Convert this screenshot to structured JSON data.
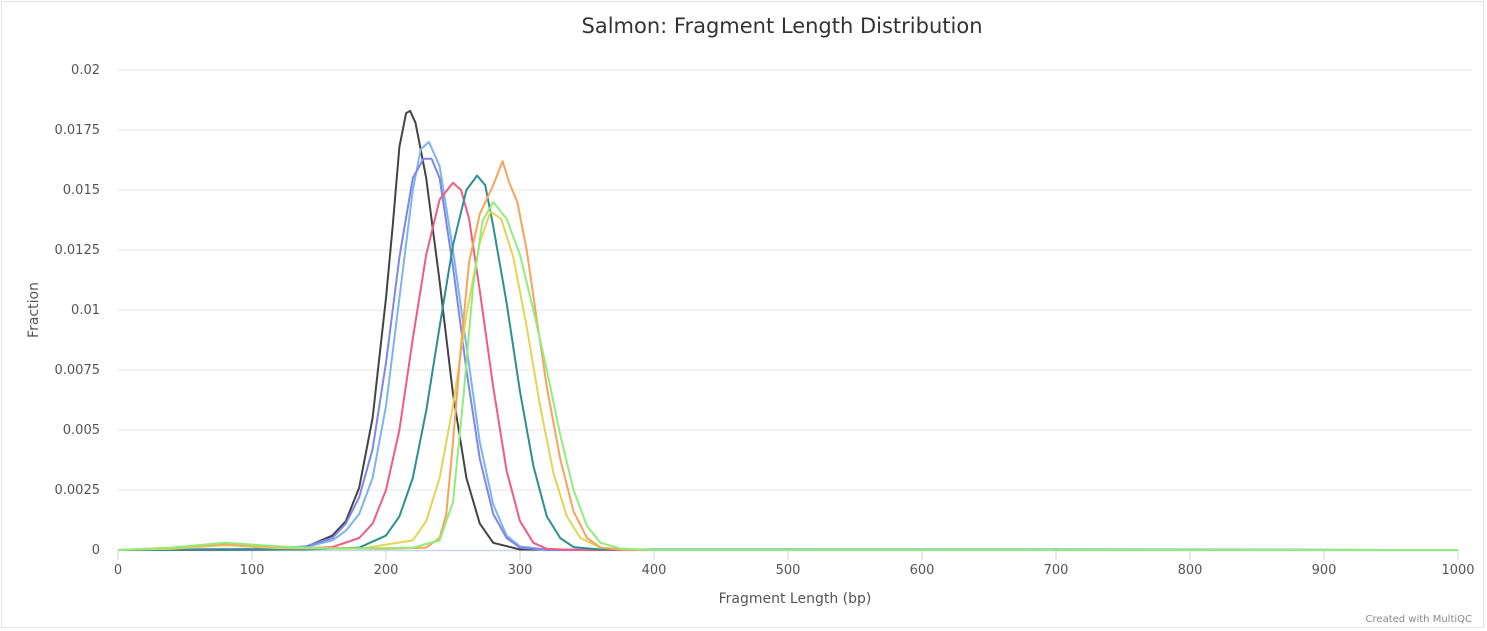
{
  "chart_data": {
    "type": "line",
    "title": "Salmon: Fragment Length Distribution",
    "xlabel": "Fragment Length (bp)",
    "ylabel": "Fraction",
    "xlim": [
      0,
      1000
    ],
    "ylim": [
      0,
      0.02
    ],
    "x_ticks": [
      "0",
      "100",
      "200",
      "300",
      "400",
      "500",
      "600",
      "700",
      "800",
      "900",
      "1000"
    ],
    "y_ticks": [
      "0",
      "0.0025",
      "0.005",
      "0.0075",
      "0.01",
      "0.0125",
      "0.015",
      "0.0175",
      "0.02"
    ],
    "grid": true,
    "legend": "none",
    "series": [
      {
        "color": "#434348",
        "points": [
          [
            0,
            0
          ],
          [
            40,
            0
          ],
          [
            120,
            2e-05
          ],
          [
            140,
            0.00012
          ],
          [
            160,
            0.0006
          ],
          [
            170,
            0.0012
          ],
          [
            180,
            0.0026
          ],
          [
            190,
            0.0055
          ],
          [
            200,
            0.0105
          ],
          [
            205,
            0.0135
          ],
          [
            210,
            0.0168
          ],
          [
            215,
            0.0182
          ],
          [
            218,
            0.0183
          ],
          [
            222,
            0.0178
          ],
          [
            230,
            0.0155
          ],
          [
            240,
            0.0112
          ],
          [
            250,
            0.0065
          ],
          [
            260,
            0.003
          ],
          [
            270,
            0.0011
          ],
          [
            280,
            0.0003
          ],
          [
            300,
            2e-05
          ],
          [
            1000,
            0
          ]
        ]
      },
      {
        "color": "#7cb5ec",
        "points": [
          [
            0,
            0
          ],
          [
            100,
            5e-05
          ],
          [
            140,
            0.00012
          ],
          [
            160,
            0.0004
          ],
          [
            170,
            0.0008
          ],
          [
            180,
            0.0015
          ],
          [
            190,
            0.003
          ],
          [
            200,
            0.006
          ],
          [
            210,
            0.0105
          ],
          [
            220,
            0.015
          ],
          [
            226,
            0.0167
          ],
          [
            232,
            0.017
          ],
          [
            240,
            0.016
          ],
          [
            250,
            0.0125
          ],
          [
            260,
            0.0085
          ],
          [
            270,
            0.0045
          ],
          [
            280,
            0.0019
          ],
          [
            290,
            0.0006
          ],
          [
            300,
            0.00015
          ],
          [
            320,
            2e-05
          ],
          [
            1000,
            0
          ]
        ]
      },
      {
        "color": "#8085e9",
        "points": [
          [
            0,
            0
          ],
          [
            100,
            4e-05
          ],
          [
            140,
            0.00015
          ],
          [
            160,
            0.0005
          ],
          [
            170,
            0.0011
          ],
          [
            180,
            0.0022
          ],
          [
            190,
            0.0042
          ],
          [
            200,
            0.0078
          ],
          [
            210,
            0.0122
          ],
          [
            220,
            0.0155
          ],
          [
            228,
            0.0163
          ],
          [
            234,
            0.0163
          ],
          [
            240,
            0.0155
          ],
          [
            250,
            0.0118
          ],
          [
            260,
            0.0075
          ],
          [
            270,
            0.0038
          ],
          [
            280,
            0.0015
          ],
          [
            290,
            0.0005
          ],
          [
            300,
            0.0001
          ],
          [
            320,
            0
          ],
          [
            1000,
            0
          ]
        ]
      },
      {
        "color": "#f15c80",
        "points": [
          [
            0,
            0
          ],
          [
            120,
            2e-05
          ],
          [
            160,
            0.00012
          ],
          [
            180,
            0.0005
          ],
          [
            190,
            0.0011
          ],
          [
            200,
            0.0025
          ],
          [
            210,
            0.005
          ],
          [
            220,
            0.0088
          ],
          [
            230,
            0.0123
          ],
          [
            240,
            0.0146
          ],
          [
            250,
            0.0153
          ],
          [
            256,
            0.015
          ],
          [
            262,
            0.0138
          ],
          [
            270,
            0.0108
          ],
          [
            280,
            0.0068
          ],
          [
            290,
            0.0033
          ],
          [
            300,
            0.0012
          ],
          [
            310,
            0.0003
          ],
          [
            320,
            5e-05
          ],
          [
            340,
            0
          ],
          [
            1000,
            0
          ]
        ]
      },
      {
        "color": "#2b908f",
        "points": [
          [
            0,
            0
          ],
          [
            140,
            2e-05
          ],
          [
            180,
            0.0001
          ],
          [
            200,
            0.0006
          ],
          [
            210,
            0.0014
          ],
          [
            220,
            0.003
          ],
          [
            230,
            0.0058
          ],
          [
            240,
            0.0093
          ],
          [
            250,
            0.0127
          ],
          [
            260,
            0.015
          ],
          [
            268,
            0.0156
          ],
          [
            274,
            0.0152
          ],
          [
            280,
            0.0135
          ],
          [
            290,
            0.0103
          ],
          [
            300,
            0.0066
          ],
          [
            310,
            0.0035
          ],
          [
            320,
            0.0014
          ],
          [
            330,
            0.0005
          ],
          [
            340,
            0.00012
          ],
          [
            360,
            2e-05
          ],
          [
            500,
            2e-05
          ],
          [
            1000,
            0
          ]
        ]
      },
      {
        "color": "#e4d354",
        "points": [
          [
            0,
            0
          ],
          [
            40,
            5e-05
          ],
          [
            80,
            0.0002
          ],
          [
            120,
            8e-05
          ],
          [
            180,
            5e-05
          ],
          [
            220,
            0.0004
          ],
          [
            230,
            0.0012
          ],
          [
            240,
            0.003
          ],
          [
            250,
            0.006
          ],
          [
            260,
            0.0098
          ],
          [
            270,
            0.0128
          ],
          [
            278,
            0.0141
          ],
          [
            286,
            0.0138
          ],
          [
            295,
            0.0122
          ],
          [
            305,
            0.0093
          ],
          [
            315,
            0.006
          ],
          [
            325,
            0.0032
          ],
          [
            335,
            0.0014
          ],
          [
            345,
            0.0005
          ],
          [
            360,
            0.0001
          ],
          [
            380,
            0
          ],
          [
            1000,
            0
          ]
        ]
      },
      {
        "color": "#f7a35c",
        "points": [
          [
            0,
            0
          ],
          [
            40,
            0.0001
          ],
          [
            80,
            0.00025
          ],
          [
            120,
            0.00012
          ],
          [
            200,
            5e-05
          ],
          [
            230,
            0.0001
          ],
          [
            240,
            0.0005
          ],
          [
            245,
            0.0015
          ],
          [
            250,
            0.0045
          ],
          [
            256,
            0.0085
          ],
          [
            262,
            0.012
          ],
          [
            270,
            0.014
          ],
          [
            280,
            0.0152
          ],
          [
            287,
            0.0162
          ],
          [
            292,
            0.0153
          ],
          [
            298,
            0.0145
          ],
          [
            305,
            0.0125
          ],
          [
            312,
            0.0098
          ],
          [
            320,
            0.0068
          ],
          [
            330,
            0.0038
          ],
          [
            340,
            0.0016
          ],
          [
            350,
            0.0005
          ],
          [
            360,
            0.0001
          ],
          [
            380,
            0
          ],
          [
            1000,
            0
          ]
        ]
      },
      {
        "color": "#90ed7d",
        "points": [
          [
            0,
            0
          ],
          [
            40,
            0.0001
          ],
          [
            80,
            0.0003
          ],
          [
            120,
            0.00015
          ],
          [
            160,
            5e-05
          ],
          [
            220,
            0.0001
          ],
          [
            240,
            0.0004
          ],
          [
            250,
            0.002
          ],
          [
            258,
            0.0065
          ],
          [
            265,
            0.011
          ],
          [
            272,
            0.0137
          ],
          [
            280,
            0.0145
          ],
          [
            290,
            0.0138
          ],
          [
            300,
            0.0123
          ],
          [
            310,
            0.01
          ],
          [
            320,
            0.0075
          ],
          [
            330,
            0.0048
          ],
          [
            340,
            0.0025
          ],
          [
            350,
            0.001
          ],
          [
            360,
            0.0003
          ],
          [
            375,
            6e-05
          ],
          [
            400,
            0
          ],
          [
            1000,
            0
          ]
        ]
      }
    ],
    "credit": "Created with MultiQC"
  }
}
